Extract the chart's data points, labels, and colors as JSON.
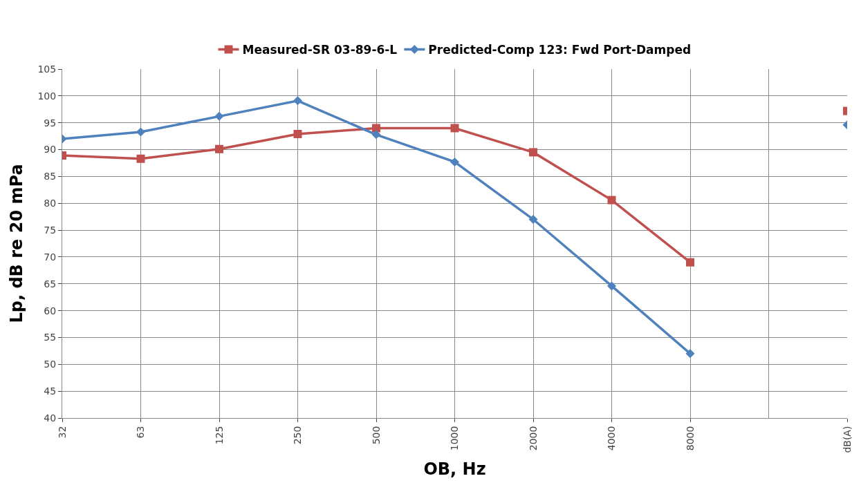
{
  "chart_data": {
    "type": "line",
    "xlabel": "OB, Hz",
    "ylabel": "Lp, dB re 20 mPa",
    "categories": [
      "32",
      "63",
      "125",
      "250",
      "500",
      "1000",
      "2000",
      "4000",
      "8000",
      null,
      "dB(A)"
    ],
    "series": [
      {
        "name": "Measured-SR 03-89-6-L",
        "color": "#c0504d",
        "marker": "square",
        "values": [
          88.9,
          88.3,
          90.1,
          92.9,
          94.0,
          94.0,
          89.5,
          80.6,
          69.0,
          null,
          97.2
        ]
      },
      {
        "name": "Predicted-Comp 123: Fwd Port-Damped",
        "color": "#4f81bd",
        "marker": "diamond",
        "values": [
          92.0,
          93.3,
          96.2,
          99.1,
          92.8,
          87.7,
          77.0,
          64.6,
          52.0,
          null,
          94.6
        ]
      }
    ],
    "ylim": [
      40,
      105
    ],
    "yticks": [
      40,
      45,
      50,
      55,
      60,
      65,
      70,
      75,
      80,
      85,
      90,
      95,
      100,
      105
    ],
    "grid": true,
    "legend": "top",
    "line_style": "solid"
  }
}
